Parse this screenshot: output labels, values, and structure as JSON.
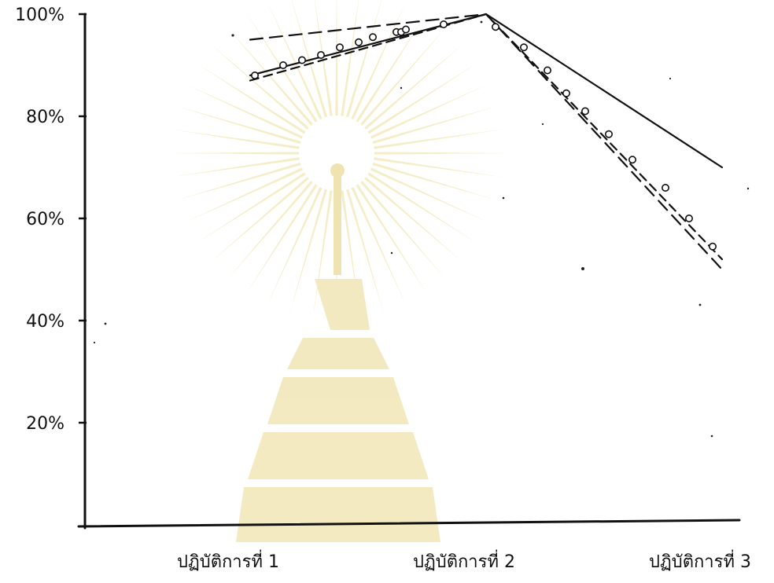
{
  "chart_data": {
    "type": "line",
    "title": "",
    "xlabel": "",
    "ylabel": "",
    "categories": [
      "ปฏิบัติการที่ 1",
      "ปฏิบัติการที่ 2",
      "ปฏิบัติการที่ 3"
    ],
    "ylim": [
      0,
      100
    ],
    "y_ticks": [
      20,
      40,
      60,
      80,
      100
    ],
    "y_tick_labels": [
      "20%",
      "40%",
      "60%",
      "80%",
      "100%"
    ],
    "grid": false,
    "legend": null,
    "series": [
      {
        "line_style": "solid",
        "marker": "none",
        "values": [
          88,
          100,
          70
        ]
      },
      {
        "line_style": "dashed",
        "marker": "none",
        "values": [
          95,
          100,
          50
        ]
      },
      {
        "line_style": "dashed",
        "marker": "circle",
        "values": [
          87,
          100,
          52
        ],
        "marker_values": [
          [
            0.02,
            88
          ],
          [
            0.14,
            90
          ],
          [
            0.22,
            91
          ],
          [
            0.3,
            92
          ],
          [
            0.38,
            93.5
          ],
          [
            0.46,
            94.5
          ],
          [
            0.52,
            95.5
          ],
          [
            0.62,
            96.5
          ],
          [
            0.64,
            96.5
          ],
          [
            0.66,
            97
          ],
          [
            0.82,
            98
          ],
          [
            1.04,
            97.5
          ],
          [
            1.16,
            93.5
          ],
          [
            1.26,
            89
          ],
          [
            1.34,
            84.5
          ],
          [
            1.42,
            81
          ],
          [
            1.52,
            76.5
          ],
          [
            1.62,
            71.5
          ],
          [
            1.76,
            66
          ],
          [
            1.86,
            60
          ],
          [
            1.96,
            54.5
          ]
        ]
      }
    ]
  },
  "colors": {
    "ink": "#111111",
    "watermark": "#f4ebbf"
  }
}
